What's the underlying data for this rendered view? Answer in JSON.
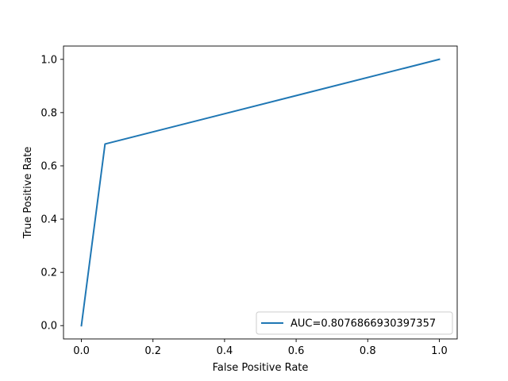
{
  "chart_data": {
    "type": "line",
    "title": "",
    "xlabel": "False Positive Rate",
    "ylabel": "True Positive Rate",
    "xlim": [
      -0.05,
      1.05
    ],
    "ylim": [
      -0.05,
      1.05
    ],
    "xticks": [
      0.0,
      0.2,
      0.4,
      0.6,
      0.8,
      1.0
    ],
    "xtick_labels": [
      "0.0",
      "0.2",
      "0.4",
      "0.6",
      "0.8",
      "1.0"
    ],
    "yticks": [
      0.0,
      0.2,
      0.4,
      0.6,
      0.8,
      1.0
    ],
    "ytick_labels": [
      "0.0",
      "0.2",
      "0.4",
      "0.6",
      "0.8",
      "1.0"
    ],
    "grid": false,
    "legend_position": "lower-right",
    "series": [
      {
        "name": "AUC=0.8076866930397357",
        "color": "#1f77b4",
        "x": [
          0.0,
          0.066,
          1.0
        ],
        "y": [
          0.0,
          0.682,
          1.0
        ]
      }
    ]
  }
}
